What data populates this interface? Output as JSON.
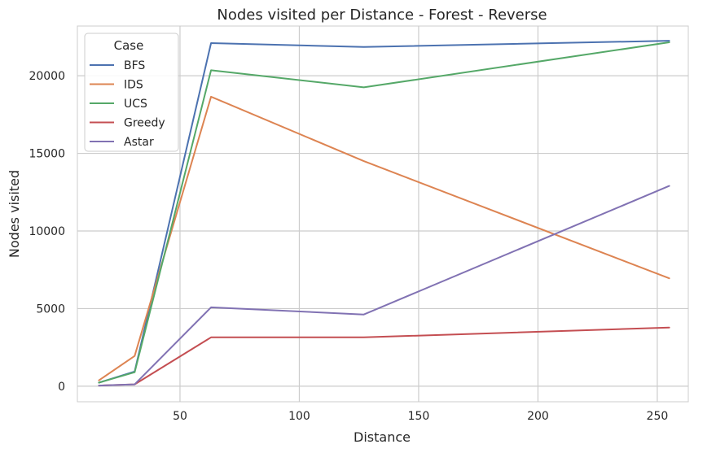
{
  "chart_data": {
    "type": "line",
    "title": "Nodes visited per Distance - Forest - Reverse",
    "xlabel": "Distance",
    "ylabel": "Nodes visited",
    "xlim": [
      7,
      263
    ],
    "ylim": [
      -1000,
      23200
    ],
    "xticks": [
      50,
      100,
      150,
      200,
      250
    ],
    "yticks": [
      0,
      5000,
      10000,
      15000,
      20000
    ],
    "grid": true,
    "legend": {
      "title": "Case",
      "placement": "top-left"
    },
    "x": [
      16,
      31,
      63,
      127,
      255
    ],
    "series": [
      {
        "name": "BFS",
        "color": "#4c72b0",
        "values": [
          230,
          950,
          22100,
          21850,
          22250
        ]
      },
      {
        "name": "IDS",
        "color": "#dd8452",
        "values": [
          380,
          1950,
          18650,
          14500,
          6950
        ]
      },
      {
        "name": "UCS",
        "color": "#55a868",
        "values": [
          230,
          900,
          20350,
          19250,
          22150
        ]
      },
      {
        "name": "Greedy",
        "color": "#c44e52",
        "values": [
          40,
          120,
          3150,
          3150,
          3780
        ]
      },
      {
        "name": "Astar",
        "color": "#8172b3",
        "values": [
          40,
          120,
          5080,
          4620,
          12900
        ]
      }
    ]
  }
}
